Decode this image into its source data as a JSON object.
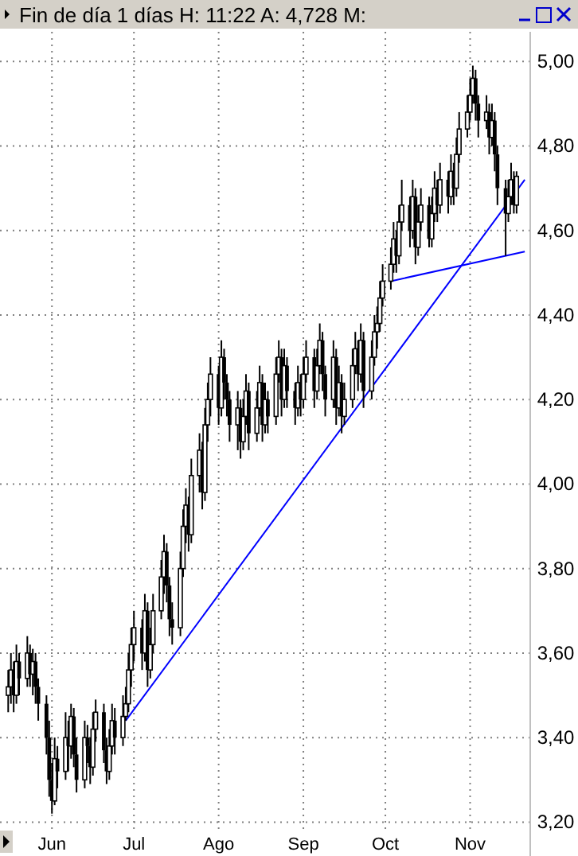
{
  "chart_data": {
    "type": "candlestick",
    "title": "Fin de día 1 días H: 11:22 A: 4,728 M:",
    "color": "#000000",
    "grid": true,
    "xlim": [
      "--05-13",
      "--11-23"
    ],
    "xticks": [
      {
        "value": "--06-01",
        "label": "Jun"
      },
      {
        "value": "--07-01",
        "label": "Jul"
      },
      {
        "value": "--08-01",
        "label": "Ago"
      },
      {
        "value": "--09-01",
        "label": "Sep"
      },
      {
        "value": "--10-01",
        "label": "Oct"
      },
      {
        "value": "--11-01",
        "label": "Nov"
      }
    ],
    "ylim": [
      3.18,
      5.07
    ],
    "yticks": [
      {
        "value": 3.2,
        "label": "3,20"
      },
      {
        "value": 3.4,
        "label": "3,40"
      },
      {
        "value": 3.6,
        "label": "3,60"
      },
      {
        "value": 3.8,
        "label": "3,80"
      },
      {
        "value": 4.0,
        "label": "4,00"
      },
      {
        "value": 4.2,
        "label": "4,20"
      },
      {
        "value": 4.4,
        "label": "4,40"
      },
      {
        "value": 4.6,
        "label": "4,60"
      },
      {
        "value": 4.8,
        "label": "4,80"
      },
      {
        "value": 5.0,
        "label": "5,00"
      }
    ],
    "x": [
      "--05-16",
      "--05-17",
      "--05-18",
      "--05-19",
      "--05-20",
      "--05-23",
      "--05-24",
      "--05-25",
      "--05-26",
      "--05-27",
      "--05-30",
      "--05-31",
      "--06-01",
      "--06-02",
      "--06-03",
      "--06-06",
      "--06-07",
      "--06-08",
      "--06-09",
      "--06-10",
      "--06-13",
      "--06-14",
      "--06-15",
      "--06-16",
      "--06-17",
      "--06-20",
      "--06-21",
      "--06-22",
      "--06-23",
      "--06-24",
      "--06-27",
      "--06-28",
      "--06-29",
      "--06-30",
      "--07-01",
      "--07-04",
      "--07-05",
      "--07-06",
      "--07-07",
      "--07-08",
      "--07-11",
      "--07-12",
      "--07-13",
      "--07-14",
      "--07-15",
      "--07-18",
      "--07-19",
      "--07-20",
      "--07-21",
      "--07-22",
      "--07-25",
      "--07-26",
      "--07-27",
      "--07-28",
      "--07-29",
      "--08-01",
      "--08-02",
      "--08-03",
      "--08-04",
      "--08-05",
      "--08-08",
      "--08-09",
      "--08-10",
      "--08-11",
      "--08-12",
      "--08-15",
      "--08-16",
      "--08-17",
      "--08-18",
      "--08-19",
      "--08-22",
      "--08-23",
      "--08-24",
      "--08-25",
      "--08-26",
      "--08-29",
      "--08-30",
      "--08-31",
      "--09-01",
      "--09-02",
      "--09-05",
      "--09-06",
      "--09-07",
      "--09-08",
      "--09-09",
      "--09-12",
      "--09-13",
      "--09-14",
      "--09-15",
      "--09-16",
      "--09-19",
      "--09-20",
      "--09-21",
      "--09-22",
      "--09-23",
      "--09-26",
      "--09-27",
      "--09-28",
      "--09-29",
      "--09-30",
      "--10-03",
      "--10-04",
      "--10-05",
      "--10-06",
      "--10-07",
      "--10-10",
      "--10-11",
      "--10-12",
      "--10-13",
      "--10-14",
      "--10-17",
      "--10-18",
      "--10-19",
      "--10-20",
      "--10-21",
      "--10-24",
      "--10-25",
      "--10-26",
      "--10-27",
      "--10-28",
      "--10-31",
      "--11-01",
      "--11-02",
      "--11-03",
      "--11-04",
      "--11-07",
      "--11-08",
      "--11-09",
      "--11-10",
      "--11-11",
      "--11-14",
      "--11-15",
      "--11-16",
      "--11-17",
      "--11-18"
    ],
    "ohlc": [
      [
        3.5,
        3.56,
        3.46,
        3.52
      ],
      [
        3.52,
        3.6,
        3.48,
        3.56
      ],
      [
        3.56,
        3.58,
        3.46,
        3.5
      ],
      [
        3.5,
        3.62,
        3.48,
        3.58
      ],
      [
        3.58,
        3.6,
        3.5,
        3.54
      ],
      [
        3.54,
        3.64,
        3.52,
        3.6
      ],
      [
        3.6,
        3.62,
        3.52,
        3.55
      ],
      [
        3.55,
        3.61,
        3.5,
        3.58
      ],
      [
        3.58,
        3.6,
        3.48,
        3.52
      ],
      [
        3.52,
        3.54,
        3.44,
        3.48
      ],
      [
        3.48,
        3.5,
        3.36,
        3.4
      ],
      [
        3.4,
        3.44,
        3.26,
        3.3
      ],
      [
        3.3,
        3.34,
        3.22,
        3.25
      ],
      [
        3.25,
        3.4,
        3.24,
        3.35
      ],
      [
        3.35,
        3.38,
        3.28,
        3.32
      ],
      [
        3.32,
        3.46,
        3.3,
        3.4
      ],
      [
        3.4,
        3.44,
        3.32,
        3.38
      ],
      [
        3.38,
        3.48,
        3.35,
        3.45
      ],
      [
        3.45,
        3.47,
        3.33,
        3.36
      ],
      [
        3.36,
        3.4,
        3.27,
        3.3
      ],
      [
        3.3,
        3.44,
        3.28,
        3.4
      ],
      [
        3.4,
        3.43,
        3.34,
        3.38
      ],
      [
        3.38,
        3.4,
        3.29,
        3.33
      ],
      [
        3.33,
        3.46,
        3.31,
        3.42
      ],
      [
        3.42,
        3.49,
        3.39,
        3.46
      ],
      [
        3.46,
        3.48,
        3.34,
        3.37
      ],
      [
        3.37,
        3.4,
        3.29,
        3.32
      ],
      [
        3.32,
        3.42,
        3.3,
        3.38
      ],
      [
        3.38,
        3.48,
        3.36,
        3.44
      ],
      [
        3.44,
        3.47,
        3.36,
        3.4
      ],
      [
        3.4,
        3.5,
        3.38,
        3.45
      ],
      [
        3.45,
        3.52,
        3.44,
        3.48
      ],
      [
        3.48,
        3.6,
        3.46,
        3.56
      ],
      [
        3.56,
        3.66,
        3.52,
        3.62
      ],
      [
        3.62,
        3.7,
        3.58,
        3.66
      ],
      [
        3.66,
        3.68,
        3.56,
        3.6
      ],
      [
        3.6,
        3.74,
        3.58,
        3.7
      ],
      [
        3.7,
        3.72,
        3.52,
        3.56
      ],
      [
        3.56,
        3.66,
        3.54,
        3.62
      ],
      [
        3.62,
        3.74,
        3.6,
        3.7
      ],
      [
        3.7,
        3.82,
        3.68,
        3.78
      ],
      [
        3.78,
        3.88,
        3.74,
        3.84
      ],
      [
        3.84,
        3.86,
        3.72,
        3.76
      ],
      [
        3.76,
        3.78,
        3.64,
        3.68
      ],
      [
        3.68,
        3.72,
        3.62,
        3.66
      ],
      [
        3.66,
        3.84,
        3.64,
        3.8
      ],
      [
        3.8,
        3.94,
        3.78,
        3.9
      ],
      [
        3.9,
        3.99,
        3.86,
        3.95
      ],
      [
        3.95,
        3.97,
        3.84,
        3.88
      ],
      [
        3.88,
        4.06,
        3.86,
        4.02
      ],
      [
        4.02,
        4.12,
        3.98,
        4.08
      ],
      [
        4.08,
        4.1,
        3.94,
        3.98
      ],
      [
        3.98,
        4.18,
        3.96,
        4.14
      ],
      [
        4.14,
        4.24,
        4.1,
        4.2
      ],
      [
        4.2,
        4.3,
        4.16,
        4.26
      ],
      [
        4.26,
        4.28,
        4.14,
        4.18
      ],
      [
        4.18,
        4.34,
        4.16,
        4.3
      ],
      [
        4.3,
        4.32,
        4.2,
        4.24
      ],
      [
        4.24,
        4.26,
        4.16,
        4.2
      ],
      [
        4.2,
        4.22,
        4.1,
        4.14
      ],
      [
        4.14,
        4.22,
        4.08,
        4.18
      ],
      [
        4.18,
        4.2,
        4.06,
        4.1
      ],
      [
        4.1,
        4.2,
        4.08,
        4.16
      ],
      [
        4.16,
        4.26,
        4.14,
        4.22
      ],
      [
        4.22,
        4.24,
        4.08,
        4.12
      ],
      [
        4.12,
        4.22,
        4.1,
        4.18
      ],
      [
        4.18,
        4.28,
        4.16,
        4.24
      ],
      [
        4.24,
        4.26,
        4.1,
        4.14
      ],
      [
        4.14,
        4.24,
        4.12,
        4.2
      ],
      [
        4.2,
        4.22,
        4.12,
        4.16
      ],
      [
        4.16,
        4.3,
        4.14,
        4.26
      ],
      [
        4.26,
        4.34,
        4.24,
        4.3
      ],
      [
        4.3,
        4.32,
        4.16,
        4.2
      ],
      [
        4.2,
        4.32,
        4.18,
        4.28
      ],
      [
        4.28,
        4.3,
        4.18,
        4.22
      ],
      [
        4.22,
        4.24,
        4.14,
        4.18
      ],
      [
        4.18,
        4.28,
        4.16,
        4.24
      ],
      [
        4.24,
        4.26,
        4.16,
        4.2
      ],
      [
        4.2,
        4.3,
        4.18,
        4.26
      ],
      [
        4.26,
        4.34,
        4.24,
        4.3
      ],
      [
        4.3,
        4.32,
        4.18,
        4.22
      ],
      [
        4.22,
        4.32,
        4.2,
        4.28
      ],
      [
        4.28,
        4.38,
        4.26,
        4.34
      ],
      [
        4.34,
        4.36,
        4.22,
        4.26
      ],
      [
        4.26,
        4.28,
        4.16,
        4.2
      ],
      [
        4.2,
        4.34,
        4.18,
        4.3
      ],
      [
        4.3,
        4.32,
        4.14,
        4.18
      ],
      [
        4.18,
        4.28,
        4.16,
        4.24
      ],
      [
        4.24,
        4.26,
        4.12,
        4.16
      ],
      [
        4.16,
        4.24,
        4.14,
        4.2
      ],
      [
        4.2,
        4.32,
        4.18,
        4.28
      ],
      [
        4.28,
        4.36,
        4.26,
        4.32
      ],
      [
        4.32,
        4.34,
        4.22,
        4.26
      ],
      [
        4.26,
        4.38,
        4.24,
        4.34
      ],
      [
        4.34,
        4.36,
        4.18,
        4.22
      ],
      [
        4.22,
        4.34,
        4.2,
        4.3
      ],
      [
        4.3,
        4.4,
        4.28,
        4.36
      ],
      [
        4.36,
        4.42,
        4.32,
        4.38
      ],
      [
        4.38,
        4.48,
        4.36,
        4.44
      ],
      [
        4.44,
        4.52,
        4.42,
        4.48
      ],
      [
        4.48,
        4.56,
        4.46,
        4.52
      ],
      [
        4.52,
        4.62,
        4.5,
        4.58
      ],
      [
        4.58,
        4.6,
        4.5,
        4.54
      ],
      [
        4.54,
        4.66,
        4.52,
        4.62
      ],
      [
        4.62,
        4.72,
        4.6,
        4.66
      ],
      [
        4.66,
        4.68,
        4.56,
        4.6
      ],
      [
        4.6,
        4.72,
        4.58,
        4.68
      ],
      [
        4.68,
        4.7,
        4.52,
        4.56
      ],
      [
        4.56,
        4.66,
        4.54,
        4.62
      ],
      [
        4.62,
        4.7,
        4.6,
        4.66
      ],
      [
        4.66,
        4.68,
        4.56,
        4.58
      ],
      [
        4.58,
        4.68,
        4.56,
        4.64
      ],
      [
        4.64,
        4.74,
        4.62,
        4.7
      ],
      [
        4.7,
        4.72,
        4.62,
        4.66
      ],
      [
        4.66,
        4.76,
        4.64,
        4.72
      ],
      [
        4.72,
        4.74,
        4.64,
        4.68
      ],
      [
        4.68,
        4.78,
        4.66,
        4.74
      ],
      [
        4.74,
        4.76,
        4.66,
        4.7
      ],
      [
        4.7,
        4.82,
        4.68,
        4.78
      ],
      [
        4.78,
        4.88,
        4.76,
        4.84
      ],
      [
        4.84,
        4.92,
        4.82,
        4.88
      ],
      [
        4.88,
        4.96,
        4.86,
        4.92
      ],
      [
        4.92,
        4.99,
        4.9,
        4.96
      ],
      [
        4.96,
        4.98,
        4.86,
        4.9
      ],
      [
        4.9,
        4.92,
        4.82,
        4.86
      ],
      [
        4.86,
        4.92,
        4.84,
        4.88
      ],
      [
        4.88,
        4.9,
        4.78,
        4.82
      ],
      [
        4.82,
        4.9,
        4.8,
        4.86
      ],
      [
        4.86,
        4.88,
        4.74,
        4.78
      ],
      [
        4.78,
        4.8,
        4.66,
        4.7
      ],
      [
        4.7,
        4.72,
        4.54,
        4.64
      ],
      [
        4.64,
        4.72,
        4.62,
        4.68
      ],
      [
        4.68,
        4.76,
        4.66,
        4.72
      ],
      [
        4.72,
        4.74,
        4.64,
        4.66
      ],
      [
        4.66,
        4.74,
        4.64,
        4.728
      ]
    ],
    "series": [
      {
        "type": "line",
        "color": "#0000ff",
        "x": [
          "--06-28",
          "--11-21"
        ],
        "values": [
          3.44,
          4.72
        ]
      },
      {
        "type": "line",
        "color": "#0000ff",
        "x": [
          "--10-03",
          "--11-21"
        ],
        "values": [
          4.48,
          4.55
        ]
      }
    ]
  }
}
